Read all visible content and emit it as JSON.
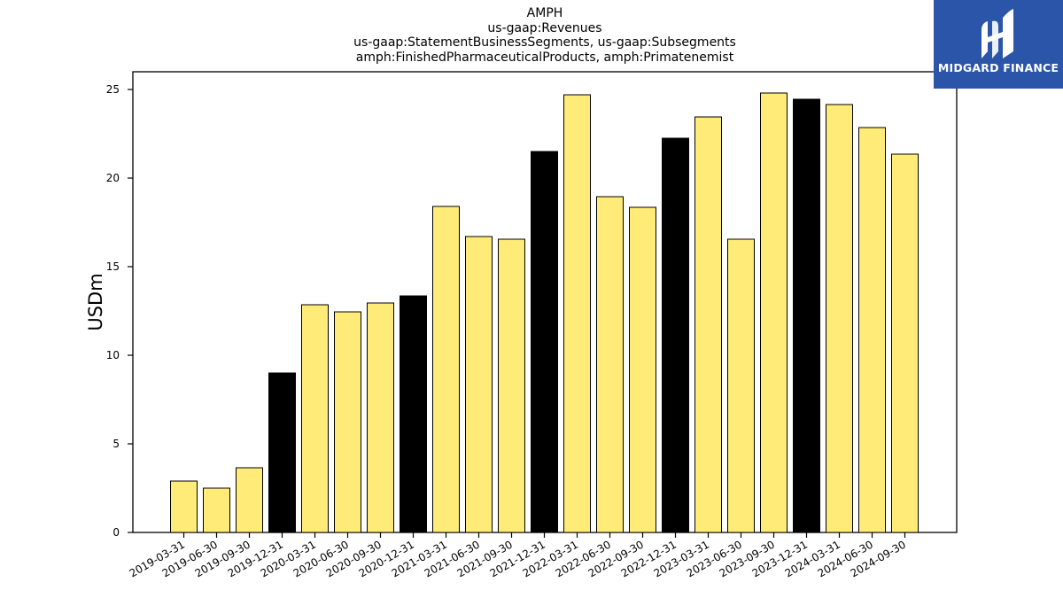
{
  "brand": {
    "name": "MIDGARD FINANCE"
  },
  "chart_data": {
    "type": "bar",
    "title_lines": [
      "AMPH",
      "us-gaap:Revenues",
      "us-gaap:StatementBusinessSegments, us-gaap:Subsegments",
      "amph:FinishedPharmaceuticalProducts, amph:Primatenemist"
    ],
    "xlabel": "",
    "ylabel": "USDm",
    "ylim": [
      0,
      26
    ],
    "yticks": [
      0,
      5,
      10,
      15,
      20,
      25
    ],
    "grid": false,
    "colors": {
      "default": "#ffeb77",
      "year_end": "#000000",
      "edge": "#000000"
    },
    "categories": [
      "2019-03-31",
      "2019-06-30",
      "2019-09-30",
      "2019-12-31",
      "2020-03-31",
      "2020-06-30",
      "2020-09-30",
      "2020-12-31",
      "2021-03-31",
      "2021-06-30",
      "2021-09-30",
      "2021-12-31",
      "2022-03-31",
      "2022-06-30",
      "2022-09-30",
      "2022-12-31",
      "2023-03-31",
      "2023-06-30",
      "2023-09-30",
      "2023-12-31",
      "2024-03-31",
      "2024-06-30",
      "2024-09-30"
    ],
    "values": [
      2.9,
      2.5,
      3.65,
      9.0,
      12.85,
      12.45,
      12.95,
      13.35,
      18.4,
      16.7,
      16.55,
      21.5,
      24.7,
      18.95,
      18.35,
      22.25,
      23.45,
      16.55,
      24.8,
      24.45,
      24.15,
      22.85,
      21.35
    ],
    "highlight": [
      false,
      false,
      false,
      true,
      false,
      false,
      false,
      true,
      false,
      false,
      false,
      true,
      false,
      false,
      false,
      true,
      false,
      false,
      false,
      true,
      false,
      false,
      false
    ]
  }
}
